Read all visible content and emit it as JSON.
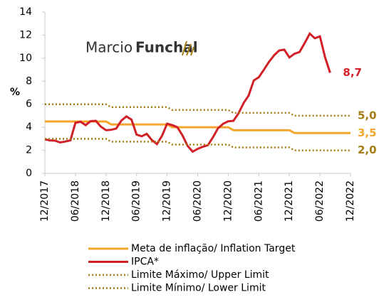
{
  "chart_data": {
    "type": "line",
    "ylabel": "%",
    "watermark": [
      "Marcio",
      "Funchal"
    ],
    "x": [
      "12/2017",
      "01/2018",
      "02/2018",
      "03/2018",
      "04/2018",
      "05/2018",
      "06/2018",
      "07/2018",
      "08/2018",
      "09/2018",
      "10/2018",
      "11/2018",
      "12/2018",
      "01/2019",
      "02/2019",
      "03/2019",
      "04/2019",
      "05/2019",
      "06/2019",
      "07/2019",
      "08/2019",
      "09/2019",
      "10/2019",
      "11/2019",
      "12/2019",
      "01/2020",
      "02/2020",
      "03/2020",
      "04/2020",
      "05/2020",
      "06/2020",
      "07/2020",
      "08/2020",
      "09/2020",
      "10/2020",
      "11/2020",
      "12/2020",
      "01/2021",
      "02/2021",
      "03/2021",
      "04/2021",
      "05/2021",
      "06/2021",
      "07/2021",
      "08/2021",
      "09/2021",
      "10/2021",
      "11/2021",
      "12/2021",
      "01/2022",
      "02/2022",
      "03/2022",
      "04/2022",
      "05/2022",
      "06/2022",
      "07/2022",
      "08/2022",
      "09/2022",
      "10/2022",
      "11/2022",
      "12/2022"
    ],
    "series": [
      {
        "name": "Meta de inflação/ Inflation Target",
        "color": "#f4a52c",
        "style": "solid",
        "end_label": "3,5",
        "values": [
          4.5,
          4.5,
          4.5,
          4.5,
          4.5,
          4.5,
          4.5,
          4.5,
          4.5,
          4.5,
          4.5,
          4.5,
          4.5,
          4.25,
          4.25,
          4.25,
          4.25,
          4.25,
          4.25,
          4.25,
          4.25,
          4.25,
          4.25,
          4.25,
          4.25,
          4,
          4,
          4,
          4,
          4,
          4,
          4,
          4,
          4,
          4,
          4,
          4,
          3.75,
          3.75,
          3.75,
          3.75,
          3.75,
          3.75,
          3.75,
          3.75,
          3.75,
          3.75,
          3.75,
          3.75,
          3.5,
          3.5,
          3.5,
          3.5,
          3.5,
          3.5,
          3.5,
          3.5,
          3.5,
          3.5,
          3.5,
          3.5
        ]
      },
      {
        "name": "IPCA*",
        "color": "#d12027",
        "style": "solid",
        "end_label": "8,7",
        "values": [
          2.95,
          2.86,
          2.84,
          2.68,
          2.76,
          2.86,
          4.39,
          4.48,
          4.19,
          4.53,
          4.56,
          4.05,
          3.75,
          3.78,
          3.89,
          4.58,
          4.94,
          4.66,
          3.37,
          3.22,
          3.43,
          2.89,
          2.54,
          3.27,
          4.31,
          4.19,
          4.01,
          3.3,
          2.4,
          1.88,
          2.13,
          2.31,
          2.44,
          3.14,
          3.92,
          4.31,
          4.52,
          4.56,
          5.2,
          6.1,
          6.76,
          8.06,
          8.35,
          8.99,
          9.68,
          10.25,
          10.67,
          10.74,
          10.06,
          10.38,
          10.54,
          11.3,
          12.13,
          11.73,
          11.89,
          10.07,
          8.73,
          null,
          null,
          null,
          null
        ]
      },
      {
        "name": "Limite Máximo/ Upper Limit",
        "color": "#a57c12",
        "style": "dotted",
        "end_label": "5,0",
        "values": [
          6,
          6,
          6,
          6,
          6,
          6,
          6,
          6,
          6,
          6,
          6,
          6,
          6,
          5.75,
          5.75,
          5.75,
          5.75,
          5.75,
          5.75,
          5.75,
          5.75,
          5.75,
          5.75,
          5.75,
          5.75,
          5.5,
          5.5,
          5.5,
          5.5,
          5.5,
          5.5,
          5.5,
          5.5,
          5.5,
          5.5,
          5.5,
          5.5,
          5.25,
          5.25,
          5.25,
          5.25,
          5.25,
          5.25,
          5.25,
          5.25,
          5.25,
          5.25,
          5.25,
          5.25,
          5,
          5,
          5,
          5,
          5,
          5,
          5,
          5,
          5,
          5,
          5,
          5
        ]
      },
      {
        "name": "Limite Mínimo/ Lower Limit",
        "color": "#a57c12",
        "style": "dotted",
        "end_label": "2,0",
        "values": [
          3,
          3,
          3,
          3,
          3,
          3,
          3,
          3,
          3,
          3,
          3,
          3,
          3,
          2.75,
          2.75,
          2.75,
          2.75,
          2.75,
          2.75,
          2.75,
          2.75,
          2.75,
          2.75,
          2.75,
          2.75,
          2.5,
          2.5,
          2.5,
          2.5,
          2.5,
          2.5,
          2.5,
          2.5,
          2.5,
          2.5,
          2.5,
          2.5,
          2.25,
          2.25,
          2.25,
          2.25,
          2.25,
          2.25,
          2.25,
          2.25,
          2.25,
          2.25,
          2.25,
          2.25,
          2,
          2,
          2,
          2,
          2,
          2,
          2,
          2,
          2,
          2,
          2,
          2
        ]
      }
    ],
    "xlim": [
      "12/2017",
      "12/2022"
    ],
    "xticks": [
      "12/2017",
      "06/2018",
      "12/2018",
      "06/2019",
      "12/2019",
      "06/2020",
      "12/2020",
      "06/2021",
      "12/2021",
      "06/2022",
      "12/2022"
    ],
    "ylim": [
      0,
      14
    ],
    "yticks": [
      0,
      2,
      4,
      6,
      8,
      10,
      12,
      14
    ],
    "grid": false
  }
}
